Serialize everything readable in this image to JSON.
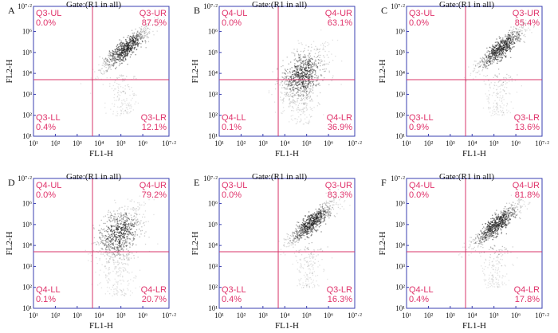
{
  "figure_title": "Flow cytometry quadrant dot plots, panels A–F",
  "chart_data": [
    {
      "type": "scatter",
      "panel": "A",
      "gate": "Gate:(R1 in all)",
      "xlabel": "FL1-H",
      "ylabel": "FL2-H",
      "xlim_log10": [
        1,
        7.2
      ],
      "ylim_log10": [
        1,
        7.2
      ],
      "x_ticks": [
        "10¹",
        "10²",
        "10³",
        "10⁴",
        "10⁵",
        "10⁶",
        "10⁷·²"
      ],
      "y_ticks": [
        "10¹",
        "10²",
        "10³",
        "10⁴",
        "10⁵",
        "10⁶",
        "10⁷·²"
      ],
      "gate_x_log10": 3.7,
      "gate_y_log10": 3.7,
      "quadrants": [
        {
          "name": "Q3-UL",
          "value": "0.0%"
        },
        {
          "name": "Q3-UR",
          "value": "87.5%"
        },
        {
          "name": "Q3-LL",
          "value": "0.4%"
        },
        {
          "name": "Q3-LR",
          "value": "12.1%"
        }
      ],
      "population": {
        "dominant": "UR",
        "center_log10": [
          5.2,
          5.2
        ],
        "spread": "diagonal"
      }
    },
    {
      "type": "scatter",
      "panel": "B",
      "gate": "Gate:(R1 in all)",
      "xlabel": "FL1-H",
      "ylabel": "FL2-H",
      "xlim_log10": [
        1,
        7.2
      ],
      "ylim_log10": [
        1,
        7.2
      ],
      "x_ticks": [
        "10¹",
        "10²",
        "10³",
        "10⁴",
        "10⁵",
        "10⁶",
        "10⁷·²"
      ],
      "y_ticks": [
        "10¹",
        "10²",
        "10³",
        "10⁴",
        "10⁵",
        "10⁶",
        "10⁷·²"
      ],
      "gate_x_log10": 3.7,
      "gate_y_log10": 3.7,
      "quadrants": [
        {
          "name": "Q4-UL",
          "value": "0.0%"
        },
        {
          "name": "Q4-UR",
          "value": "63.1%"
        },
        {
          "name": "Q4-LL",
          "value": "0.1%"
        },
        {
          "name": "Q4-LR",
          "value": "36.9%"
        }
      ],
      "population": {
        "dominant": "UR/LR",
        "center_log10": [
          4.8,
          4.0
        ],
        "spread": "broad"
      }
    },
    {
      "type": "scatter",
      "panel": "C",
      "gate": "Gate:(R1 in all)",
      "xlabel": "FL1-H",
      "ylabel": "FL2-H",
      "xlim_log10": [
        1,
        7.2
      ],
      "ylim_log10": [
        1,
        7.2
      ],
      "x_ticks": [
        "10¹",
        "10²",
        "10³",
        "10⁴",
        "10⁵",
        "10⁶",
        "10⁷·²"
      ],
      "y_ticks": [
        "10¹",
        "10²",
        "10³",
        "10⁴",
        "10⁵",
        "10⁶",
        "10⁷·²"
      ],
      "gate_x_log10": 3.7,
      "gate_y_log10": 3.7,
      "quadrants": [
        {
          "name": "Q3-UL",
          "value": "0.0%"
        },
        {
          "name": "Q3-UR",
          "value": "85.4%"
        },
        {
          "name": "Q3-LL",
          "value": "0.9%"
        },
        {
          "name": "Q3-LR",
          "value": "13.6%"
        }
      ],
      "population": {
        "dominant": "UR",
        "center_log10": [
          5.3,
          5.2
        ],
        "spread": "diagonal"
      }
    },
    {
      "type": "scatter",
      "panel": "D",
      "gate": "Gate:(R1 in all)",
      "xlabel": "FL1-H",
      "ylabel": "FL2-H",
      "xlim_log10": [
        1,
        7.2
      ],
      "ylim_log10": [
        1,
        7.2
      ],
      "x_ticks": [
        "10¹",
        "10²",
        "10³",
        "10⁴",
        "10⁵",
        "10⁶",
        "10⁷·²"
      ],
      "y_ticks": [
        "10¹",
        "10²",
        "10³",
        "10⁴",
        "10⁵",
        "10⁶",
        "10⁷·²"
      ],
      "gate_x_log10": 3.7,
      "gate_y_log10": 3.7,
      "quadrants": [
        {
          "name": "Q4-UL",
          "value": "0.0%"
        },
        {
          "name": "Q4-UR",
          "value": "79.2%"
        },
        {
          "name": "Q4-LL",
          "value": "0.1%"
        },
        {
          "name": "Q4-LR",
          "value": "20.7%"
        }
      ],
      "population": {
        "dominant": "UR",
        "center_log10": [
          4.9,
          4.6
        ],
        "spread": "broad"
      }
    },
    {
      "type": "scatter",
      "panel": "E",
      "gate": "Gate:(R1 in all)",
      "xlabel": "FL1-H",
      "ylabel": "FL2-H",
      "xlim_log10": [
        1,
        7.2
      ],
      "ylim_log10": [
        1,
        7.2
      ],
      "x_ticks": [
        "10¹",
        "10²",
        "10³",
        "10⁴",
        "10⁵",
        "10⁶",
        "10⁷·²"
      ],
      "y_ticks": [
        "10¹",
        "10²",
        "10³",
        "10⁴",
        "10⁵",
        "10⁶",
        "10⁷·²"
      ],
      "gate_x_log10": 3.7,
      "gate_y_log10": 3.7,
      "quadrants": [
        {
          "name": "Q3-UL",
          "value": "0.0%"
        },
        {
          "name": "Q3-UR",
          "value": "83.3%"
        },
        {
          "name": "Q3-LL",
          "value": "0.4%"
        },
        {
          "name": "Q3-LR",
          "value": "16.3%"
        }
      ],
      "population": {
        "dominant": "UR",
        "center_log10": [
          5.2,
          5.1
        ],
        "spread": "diagonal"
      }
    },
    {
      "type": "scatter",
      "panel": "F",
      "gate": "Gate:(R1 in all)",
      "xlabel": "FL1-H",
      "ylabel": "FL2-H",
      "xlim_log10": [
        1,
        7.2
      ],
      "ylim_log10": [
        1,
        7.2
      ],
      "x_ticks": [
        "10¹",
        "10²",
        "10³",
        "10⁴",
        "10⁵",
        "10⁶",
        "10⁷·²"
      ],
      "y_ticks": [
        "10¹",
        "10²",
        "10³",
        "10⁴",
        "10⁵",
        "10⁶",
        "10⁷·²"
      ],
      "gate_x_log10": 3.7,
      "gate_y_log10": 3.7,
      "quadrants": [
        {
          "name": "Q4-UL",
          "value": "0.0%"
        },
        {
          "name": "Q4-UR",
          "value": "81.8%"
        },
        {
          "name": "Q4-LL",
          "value": "0.4%"
        },
        {
          "name": "Q4-LR",
          "value": "17.8%"
        }
      ],
      "population": {
        "dominant": "UR",
        "center_log10": [
          5.1,
          5.0
        ],
        "spread": "diagonal"
      }
    }
  ],
  "colors": {
    "axis": "#3a3fb0",
    "gate_line": "#d8356a",
    "quadrant_text": "#e0336b",
    "text": "#111111",
    "dots": "#222222"
  }
}
